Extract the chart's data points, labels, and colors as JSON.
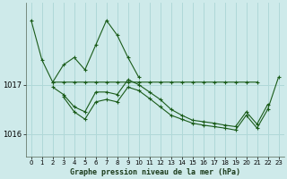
{
  "background_color": "#ceeaea",
  "grid_color": "#b0d8d8",
  "line_color": "#1a5c1a",
  "title": "Graphe pression niveau de la mer (hPa)",
  "xlim": [
    -0.5,
    23.5
  ],
  "ylim": [
    1015.55,
    1018.65
  ],
  "yticks": [
    1016,
    1017
  ],
  "xticks": [
    0,
    1,
    2,
    3,
    4,
    5,
    6,
    7,
    8,
    9,
    10,
    11,
    12,
    13,
    14,
    15,
    16,
    17,
    18,
    19,
    20,
    21,
    22,
    23
  ],
  "series": [
    {
      "x": [
        0,
        1,
        2,
        3,
        4,
        5,
        6,
        7,
        8,
        9,
        10,
        11,
        12,
        13,
        14,
        15,
        16,
        17,
        18,
        19,
        20,
        21
      ],
      "y": [
        1018.3,
        1017.5,
        1017.05,
        1017.05,
        1017.05,
        1017.05,
        1017.05,
        1017.05,
        1017.05,
        1017.05,
        1017.05,
        1017.05,
        1017.05,
        1017.05,
        1017.05,
        1017.05,
        1017.05,
        1017.05,
        1017.05,
        1017.05,
        1017.05,
        1017.05
      ]
    },
    {
      "x": [
        2,
        3,
        4,
        5,
        6,
        7,
        8,
        9,
        10
      ],
      "y": [
        1017.05,
        1017.4,
        1017.55,
        1017.3,
        1017.8,
        1018.3,
        1018.0,
        1017.55,
        1017.15
      ]
    },
    {
      "x": [
        2,
        3,
        4,
        5,
        6,
        7,
        8,
        9,
        10,
        11,
        12,
        13,
        14,
        15,
        16,
        17,
        18,
        19,
        20,
        21,
        22
      ],
      "y": [
        1016.95,
        1016.8,
        1016.55,
        1016.45,
        1016.85,
        1016.85,
        1016.8,
        1017.1,
        1017.0,
        1016.85,
        1016.7,
        1016.5,
        1016.38,
        1016.28,
        1016.25,
        1016.22,
        1016.18,
        1016.15,
        1016.45,
        1016.2,
        1016.6
      ]
    },
    {
      "x": [
        3,
        4,
        5,
        6,
        7,
        8,
        9,
        10,
        11,
        12,
        13,
        14,
        15,
        16,
        17,
        18,
        19,
        20,
        21,
        22,
        23
      ],
      "y": [
        1016.75,
        1016.45,
        1016.3,
        1016.65,
        1016.7,
        1016.65,
        1016.95,
        1016.88,
        1016.72,
        1016.55,
        1016.38,
        1016.3,
        1016.22,
        1016.18,
        1016.15,
        1016.12,
        1016.08,
        1016.38,
        1016.12,
        1016.5,
        1017.15
      ]
    }
  ]
}
